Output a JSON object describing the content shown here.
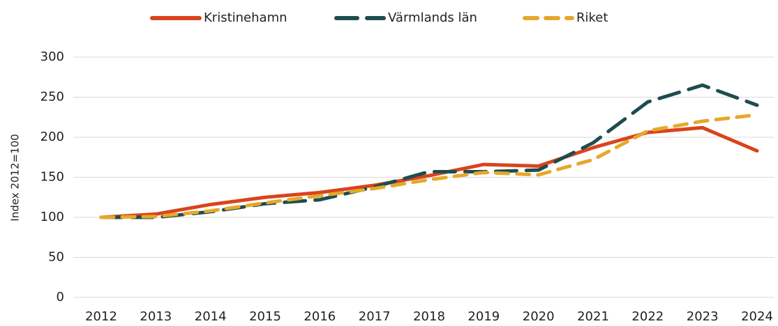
{
  "chart_data": {
    "type": "line",
    "ylabel": "Index 2012=100",
    "categories": [
      "2012",
      "2013",
      "2014",
      "2015",
      "2016",
      "2017",
      "2018",
      "2019",
      "2020",
      "2021",
      "2022",
      "2023",
      "2024"
    ],
    "series": [
      {
        "name": "Kristinehamn",
        "color": "#d9441c",
        "dash": "solid",
        "values": [
          100,
          104,
          116,
          125,
          131,
          140,
          152,
          166,
          164,
          187,
          206,
          212,
          183
        ]
      },
      {
        "name": "Värmlands län",
        "color": "#1e4d4e",
        "dash": "long",
        "values": [
          100,
          100,
          107,
          117,
          122,
          138,
          157,
          157,
          159,
          193,
          244,
          265,
          240
        ]
      },
      {
        "name": "Riket",
        "color": "#e6a82a",
        "dash": "short",
        "values": [
          100,
          101,
          108,
          118,
          127,
          136,
          147,
          156,
          153,
          172,
          208,
          220,
          228
        ]
      }
    ],
    "ylim": [
      0,
      300
    ],
    "yticks": [
      0,
      50,
      100,
      150,
      200,
      250,
      300
    ],
    "grid": true,
    "legend": "top"
  }
}
